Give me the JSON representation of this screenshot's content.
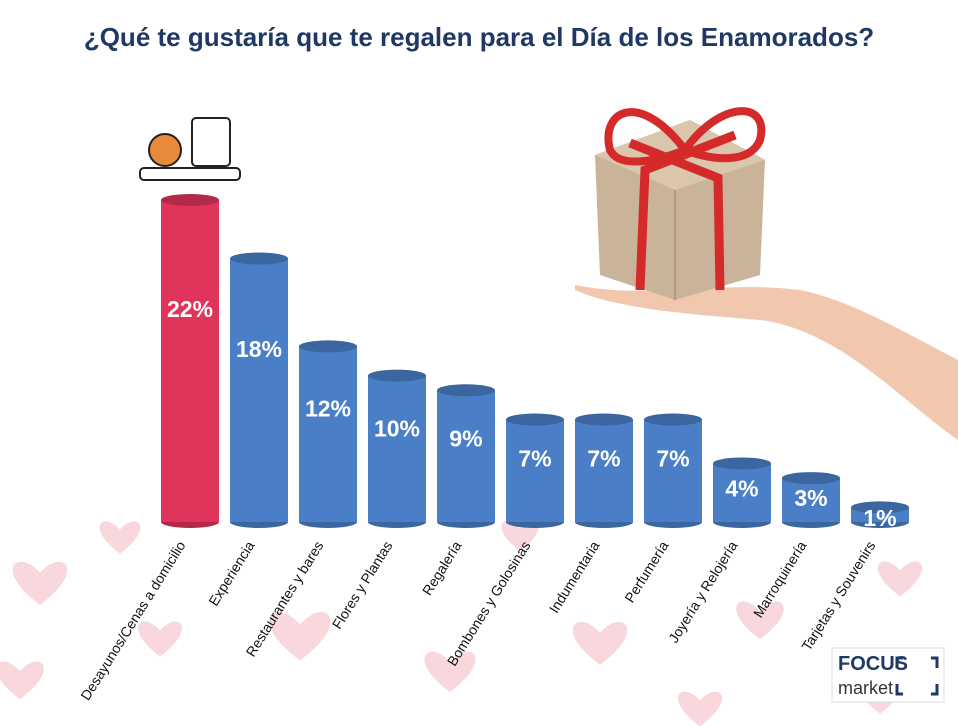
{
  "chart_data": {
    "type": "bar",
    "title": "¿Qué te gustaría que te regalen para el Día de los Enamorados?",
    "categories": [
      "Desayunos/Cenas a domicilio",
      "Experiencia",
      "Restaurantes y bares",
      "Flores y Plantas",
      "Regalería",
      "Bombones y Golosinas",
      "Indumentaria",
      "Perfumería",
      "Joyería y Relojería",
      "Marroquinería",
      "Tarjetas y Souvenirs"
    ],
    "values": [
      22,
      18,
      12,
      10,
      9,
      7,
      7,
      7,
      4,
      3,
      1
    ],
    "value_labels": [
      "22%",
      "18%",
      "12%",
      "10%",
      "9%",
      "7%",
      "7%",
      "7%",
      "4%",
      "3%",
      "1%"
    ],
    "colors": [
      "#e0345a",
      "#4a7fc8",
      "#4a7fc8",
      "#4a7fc8",
      "#4a7fc8",
      "#4a7fc8",
      "#4a7fc8",
      "#4a7fc8",
      "#4a7fc8",
      "#4a7fc8",
      "#4a7fc8"
    ]
  },
  "logo": {
    "line1": "FOCUS",
    "line2": "market"
  }
}
